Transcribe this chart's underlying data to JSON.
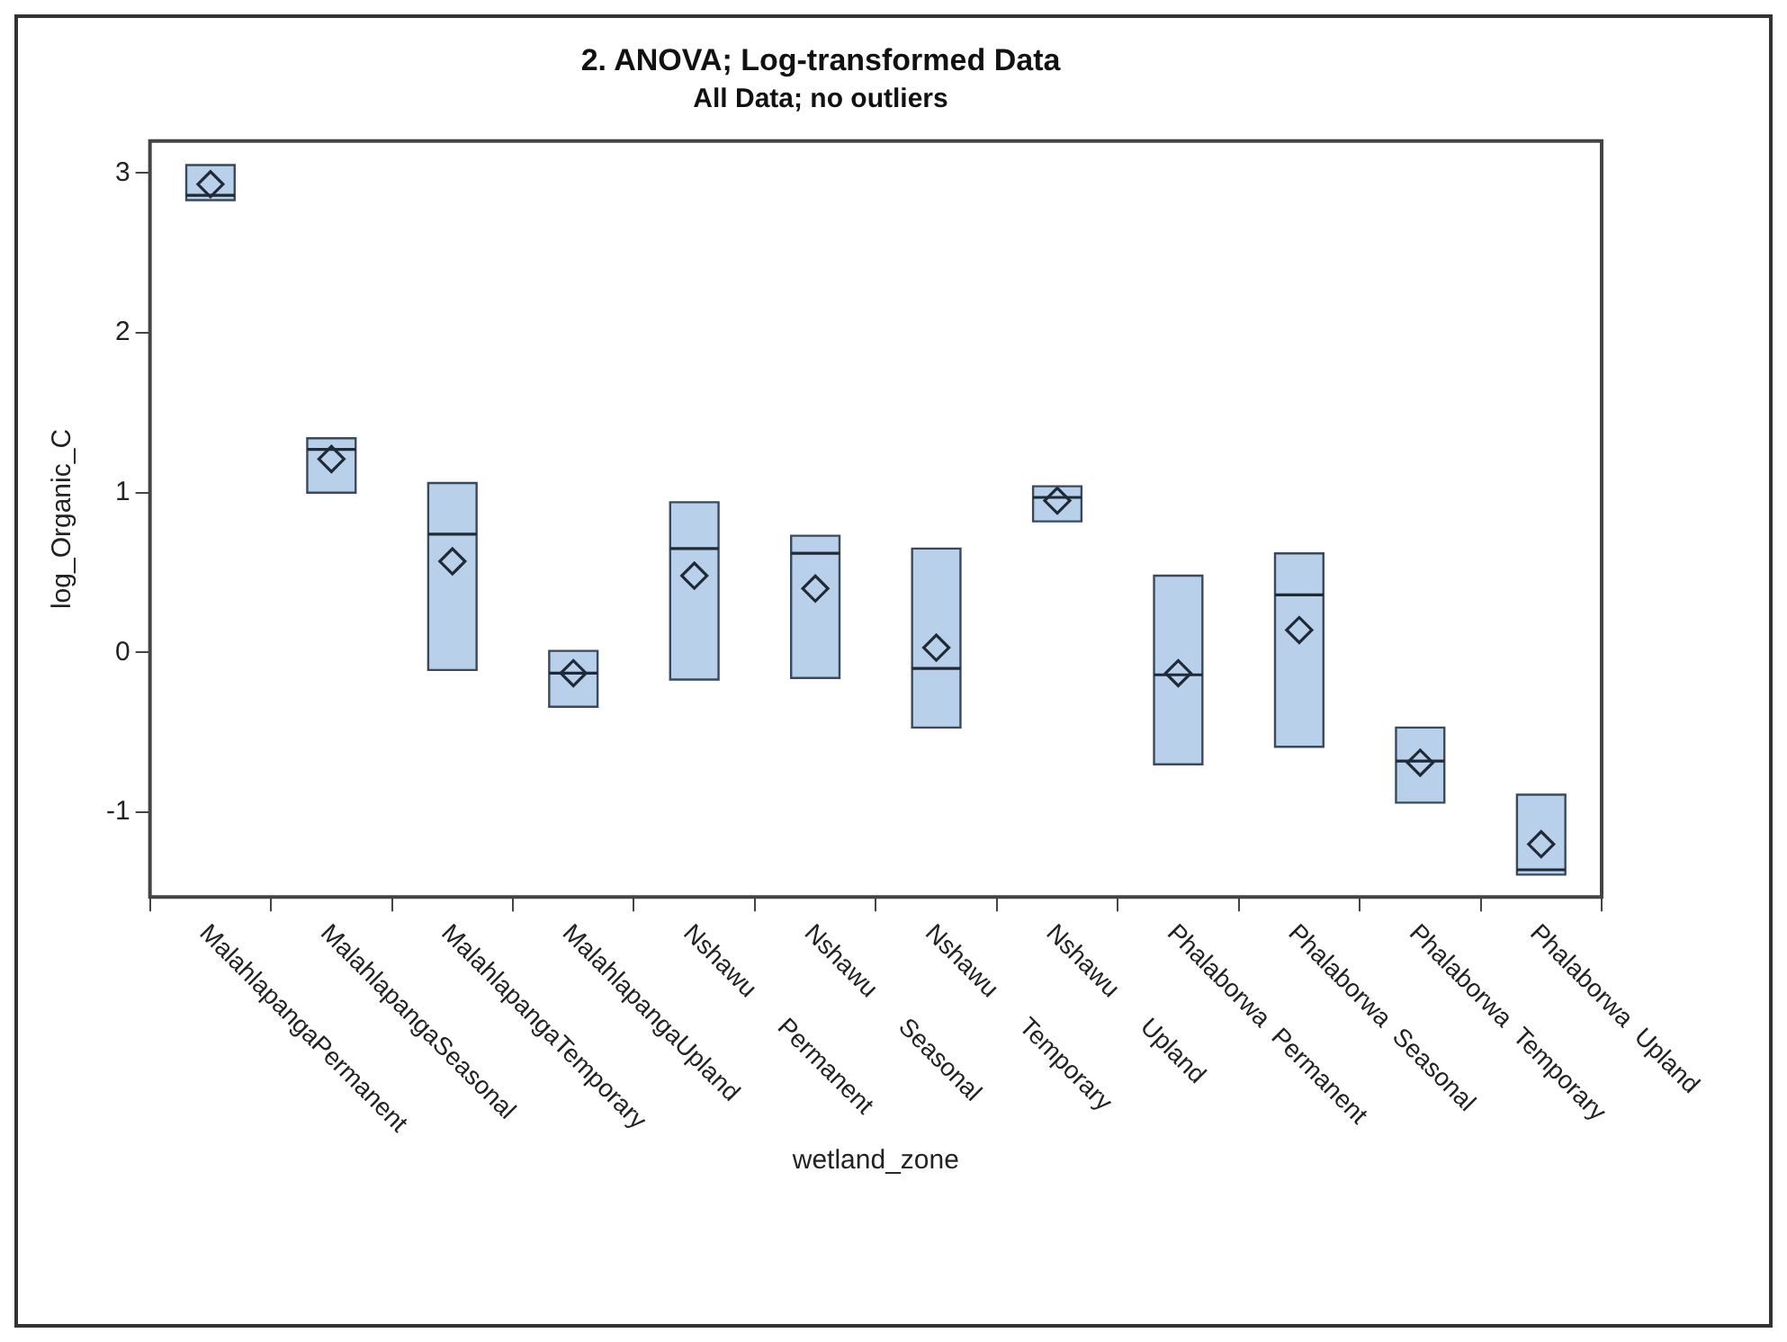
{
  "chart_data": {
    "type": "box",
    "title": "2. ANOVA; Log-transformed Data",
    "subtitle": "All Data; no outliers",
    "xlabel": "wetland_zone",
    "ylabel": "log_Organic_C",
    "categories": [
      "MalahlapangaPermanent",
      "MalahlapangaSeasonal",
      "MalahlapangaTemporary",
      "MalahlapangaUpland",
      "Nshawu      Permanent",
      "Nshawu      Seasonal",
      "Nshawu      Temporary",
      "Nshawu      Upland",
      "Phalaborwa  Permanent",
      "Phalaborwa  Seasonal",
      "Phalaborwa  Temporary",
      "Phalaborwa  Upland"
    ],
    "color": "#b9d0ea",
    "boxes": [
      {
        "low": 2.83,
        "q1": 2.83,
        "median": 2.86,
        "q3": 3.05,
        "high": 3.05,
        "mean": 2.93
      },
      {
        "low": 1.0,
        "q1": 1.0,
        "median": 1.27,
        "q3": 1.34,
        "high": 1.34,
        "mean": 1.21
      },
      {
        "low": -0.11,
        "q1": -0.11,
        "median": 0.74,
        "q3": 1.06,
        "high": 1.06,
        "mean": 0.57
      },
      {
        "low": -0.34,
        "q1": -0.34,
        "median": -0.13,
        "q3": 0.01,
        "high": 0.01,
        "mean": -0.13
      },
      {
        "low": -0.17,
        "q1": -0.17,
        "median": 0.65,
        "q3": 0.94,
        "high": 0.94,
        "mean": 0.48
      },
      {
        "low": -0.16,
        "q1": -0.16,
        "median": 0.62,
        "q3": 0.73,
        "high": 0.73,
        "mean": 0.4
      },
      {
        "low": -0.47,
        "q1": -0.47,
        "median": -0.1,
        "q3": 0.65,
        "high": 0.65,
        "mean": 0.03
      },
      {
        "low": 0.82,
        "q1": 0.82,
        "median": 0.97,
        "q3": 1.04,
        "high": 1.04,
        "mean": 0.95
      },
      {
        "low": -0.7,
        "q1": -0.7,
        "median": -0.14,
        "q3": 0.48,
        "high": 0.48,
        "mean": -0.13
      },
      {
        "low": -0.59,
        "q1": -0.59,
        "median": 0.36,
        "q3": 0.62,
        "high": 0.62,
        "mean": 0.14
      },
      {
        "low": -0.94,
        "q1": -0.94,
        "median": -0.68,
        "q3": -0.47,
        "high": -0.47,
        "mean": -0.69
      },
      {
        "low": -1.39,
        "q1": -1.39,
        "median": -1.36,
        "q3": -0.89,
        "high": -0.89,
        "mean": -1.2
      }
    ],
    "ylim": [
      -1.53,
      3.2
    ],
    "yticks": [
      -1,
      0,
      1,
      2,
      3
    ],
    "grid": false,
    "legend": false,
    "marker": "diamond"
  }
}
